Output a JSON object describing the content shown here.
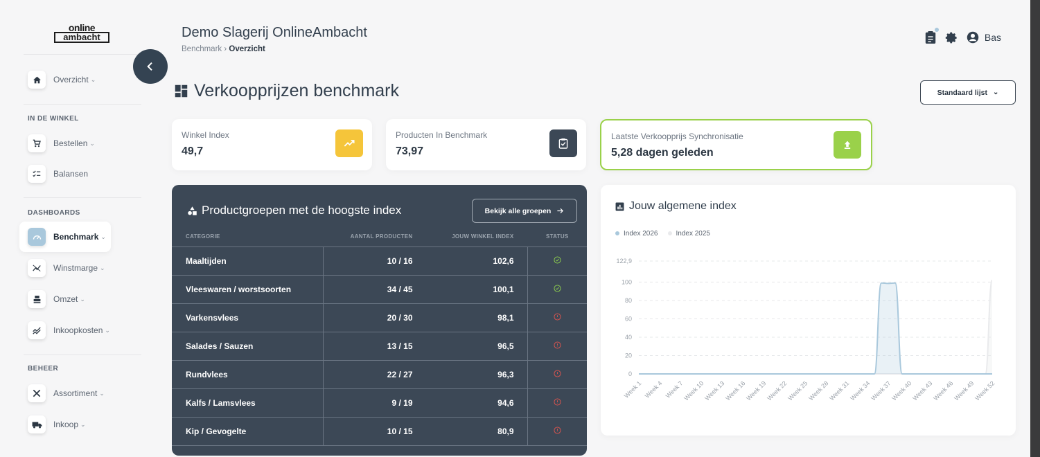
{
  "app": {
    "logo_line1": "online",
    "logo_line2": "ambacht",
    "company": "Demo Slagerij OnlineAmbacht",
    "breadcrumb": {
      "parent": "Benchmark",
      "separator": "›",
      "current": "Overzicht"
    },
    "user": "Bas"
  },
  "sidebar": {
    "top_item": {
      "label": "Overzicht",
      "icon": "home-icon"
    },
    "sections": [
      {
        "title": "IN DE WINKEL",
        "items": [
          {
            "label": "Bestellen",
            "icon": "cart-icon",
            "has_chevron": true
          },
          {
            "label": "Balansen",
            "icon": "checklist-icon",
            "has_chevron": false
          }
        ]
      },
      {
        "title": "DASHBOARDS",
        "items": [
          {
            "label": "Benchmark",
            "icon": "gauge-icon",
            "has_chevron": true,
            "active": true
          },
          {
            "label": "Winstmarge",
            "icon": "chart-line-icon",
            "has_chevron": true
          },
          {
            "label": "Omzet",
            "icon": "register-icon",
            "has_chevron": true
          },
          {
            "label": "Inkoopkosten",
            "icon": "trend-icon",
            "has_chevron": true
          }
        ]
      },
      {
        "title": "BEHEER",
        "items": [
          {
            "label": "Assortiment",
            "icon": "utensils-icon",
            "has_chevron": true
          },
          {
            "label": "Inkoop",
            "icon": "truck-icon",
            "has_chevron": true
          }
        ]
      }
    ]
  },
  "page": {
    "title": "Verkoopprijzen benchmark",
    "list_button": "Standaard lijst"
  },
  "stats": [
    {
      "label": "Winkel Index",
      "value": "49,7",
      "icon": "trend-up-icon",
      "color": "#f5c53a"
    },
    {
      "label": "Producten In Benchmark",
      "value": "73,97",
      "icon": "clipboard-check-icon",
      "color": "#3c4856"
    },
    {
      "label": "Laatste Verkoopprijs Synchronisatie",
      "value": "5,28 dagen geleden",
      "icon": "upload-icon",
      "color": "#9ad14a"
    }
  ],
  "product_groups": {
    "title": "Productgroepen met de hoogste index",
    "button": "Bekijk alle groepen",
    "headers": [
      "CATEGORIE",
      "AANTAL PRODUCTEN",
      "JOUW WINKEL INDEX",
      "STATUS"
    ],
    "rows": [
      {
        "category": "Maaltijden",
        "count": "10 / 16",
        "index": "102,6",
        "status": "ok"
      },
      {
        "category": "Vleeswaren / worstsoorten",
        "count": "34 / 45",
        "index": "100,1",
        "status": "ok"
      },
      {
        "category": "Varkensvlees",
        "count": "20 / 30",
        "index": "98,1",
        "status": "warn"
      },
      {
        "category": "Salades / Sauzen",
        "count": "13 / 15",
        "index": "96,5",
        "status": "warn"
      },
      {
        "category": "Rundvlees",
        "count": "22 / 27",
        "index": "96,3",
        "status": "warn"
      },
      {
        "category": "Kalfs / Lamsvlees",
        "count": "9 / 19",
        "index": "94,6",
        "status": "warn"
      },
      {
        "category": "Kip / Gevogelte",
        "count": "10 / 15",
        "index": "80,9",
        "status": "warn"
      }
    ],
    "status_colors": {
      "ok": "#8fd14f",
      "warn": "#e0554f"
    }
  },
  "index_chart": {
    "title": "Jouw algemene index",
    "legend": [
      {
        "name": "Index 2026",
        "color": "#a9c8dc"
      },
      {
        "name": "Index 2025",
        "color": "#e9eaec"
      }
    ]
  },
  "chart_data": {
    "type": "area",
    "title": "Jouw algemene index",
    "ylim": [
      0,
      122.9
    ],
    "yticks": [
      "122,9",
      "100",
      "80",
      "60",
      "40",
      "20",
      "0"
    ],
    "x": [
      "Week 1",
      "Week 4",
      "Week 7",
      "Week 10",
      "Week 13",
      "Week 16",
      "Week 19",
      "Week 22",
      "Week 25",
      "Week 28",
      "Week 31",
      "Week 34",
      "Week 37",
      "Week 40",
      "Week 43",
      "Week 46",
      "Week 49",
      "Week 52"
    ],
    "series": [
      {
        "name": "Index 2026",
        "color": "#a9c8dc",
        "points": [
          [
            1,
            0
          ],
          [
            34,
            0
          ],
          [
            35,
            0
          ],
          [
            36,
            99
          ],
          [
            37,
            98.5
          ],
          [
            38,
            99
          ],
          [
            39,
            0
          ],
          [
            52,
            0
          ]
        ]
      },
      {
        "name": "Index 2025",
        "color": "#e9eaec",
        "points": [
          [
            1,
            0
          ],
          [
            51,
            0
          ],
          [
            52,
            102
          ]
        ]
      }
    ],
    "grid": true,
    "legend_position": "top-left"
  }
}
